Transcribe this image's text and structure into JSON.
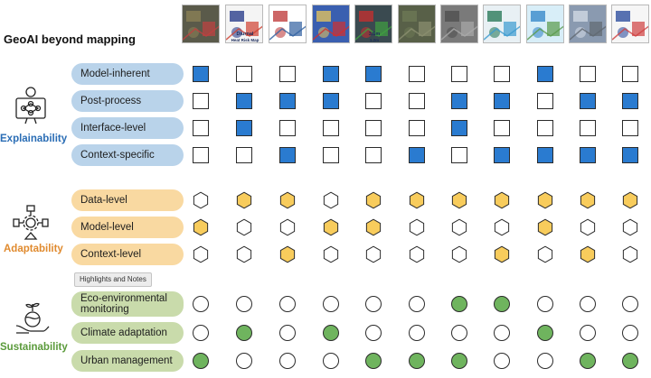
{
  "title": "GeoAI beyond mapping",
  "thumbnails": [
    {
      "name": "cropland-map-thumbnail",
      "colors": [
        "#5a5a4a",
        "#8a7f55",
        "#c04040"
      ],
      "texts": []
    },
    {
      "name": "heat-risk-map-thumbnail",
      "colors": [
        "#f4f4f4",
        "#2c3e8c",
        "#d04030"
      ],
      "texts": [
        "Diurnal",
        "Heat Risk Map"
      ]
    },
    {
      "name": "us-population-map-thumbnail",
      "colors": [
        "#ffffff",
        "#c04040",
        "#3060a0"
      ],
      "texts": []
    },
    {
      "name": "hurricane-satellite-thumbnail",
      "colors": [
        "#3a5fb0",
        "#e0c060",
        "#d03030"
      ],
      "texts": []
    },
    {
      "name": "flood-depth-thumbnail",
      "colors": [
        "#3a4a50",
        "#c03030",
        "#40a040"
      ],
      "texts": [
        "3.5m",
        "1.2m"
      ]
    },
    {
      "name": "aerial-imagery-thumbnail",
      "colors": [
        "#586048",
        "#6d7855",
        "#8c9070"
      ],
      "texts": []
    },
    {
      "name": "street-view-thumbnail",
      "colors": [
        "#7a7a7a",
        "#505050",
        "#aaaaaa"
      ],
      "texts": []
    },
    {
      "name": "southeast-asia-map-thumbnail",
      "colors": [
        "#e8f0f4",
        "#2a7a5a",
        "#3a9ad0"
      ],
      "texts": []
    },
    {
      "name": "climate-scene-thumbnail",
      "colors": [
        "#d8eef8",
        "#3a8acb",
        "#5a9a4a"
      ],
      "texts": []
    },
    {
      "name": "building-grid-thumbnail",
      "colors": [
        "#8a9ab0",
        "#d0d8e4",
        "#606870"
      ],
      "texts": []
    },
    {
      "name": "city-chart-thumbnail",
      "colors": [
        "#f6f6f6",
        "#3050a0",
        "#d04040"
      ],
      "texts": []
    }
  ],
  "categories": [
    {
      "key": "explainability",
      "label": "Explainability",
      "color": "#2a6db5",
      "icon": "presenter-network-icon",
      "rows": [
        {
          "label": "Model-inherent",
          "values": [
            1,
            0,
            0,
            1,
            1,
            0,
            0,
            0,
            1,
            0,
            0
          ]
        },
        {
          "label": "Post-process",
          "values": [
            0,
            1,
            1,
            1,
            0,
            0,
            1,
            1,
            0,
            1,
            1
          ]
        },
        {
          "label": "Interface-level",
          "values": [
            0,
            1,
            0,
            0,
            0,
            0,
            1,
            0,
            0,
            0,
            0
          ]
        },
        {
          "label": "Context-specific",
          "values": [
            0,
            0,
            1,
            0,
            0,
            1,
            0,
            1,
            1,
            1,
            1
          ]
        }
      ]
    },
    {
      "key": "adaptability",
      "label": "Adaptability",
      "color": "#e08a2e",
      "icon": "gear-flow-icon",
      "rows": [
        {
          "label": "Data-level",
          "values": [
            0,
            1,
            1,
            0,
            1,
            1,
            1,
            1,
            1,
            1,
            1
          ]
        },
        {
          "label": "Model-level",
          "values": [
            1,
            0,
            0,
            1,
            1,
            0,
            0,
            0,
            1,
            0,
            0
          ]
        },
        {
          "label": "Context-level",
          "values": [
            0,
            0,
            1,
            0,
            0,
            0,
            0,
            1,
            0,
            1,
            0
          ]
        }
      ]
    },
    {
      "key": "sustainability",
      "label": "Sustainability",
      "color": "#5a9a3a",
      "icon": "hand-globe-plant-icon",
      "rows": [
        {
          "label": "Eco-environmental monitoring",
          "values": [
            0,
            0,
            0,
            0,
            0,
            0,
            1,
            1,
            0,
            0,
            0
          ]
        },
        {
          "label": "Climate adaptation",
          "values": [
            0,
            1,
            0,
            1,
            0,
            0,
            0,
            0,
            1,
            0,
            0
          ]
        },
        {
          "label": "Urban management",
          "values": [
            1,
            0,
            0,
            0,
            1,
            1,
            1,
            0,
            0,
            1,
            1
          ]
        }
      ]
    }
  ],
  "tooltip": "Highlights and Notes",
  "colors": {
    "square_fill": "#2a7bd0",
    "hexagon_fill": "#f8cc5c",
    "circle_fill": "#6fb45e",
    "outline": "#2b2b2b"
  }
}
